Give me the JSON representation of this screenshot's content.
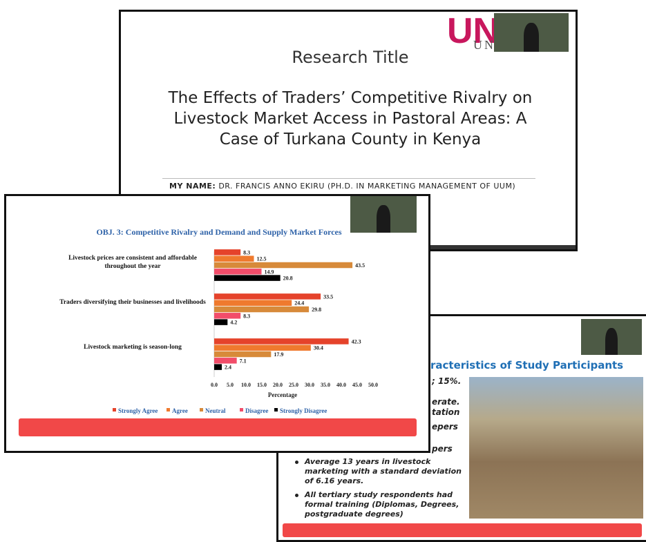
{
  "slides": [
    {
      "logo": "UN",
      "logo_sub": "UN",
      "heading": "Research Title",
      "title": "The Effects of Traders’ Competitive Rivalry on Livestock Market Access in Pastoral Areas: A Case of Turkana County in Kenya",
      "name_label": "MY NAME:",
      "name": "DR. FRANCIS ANNO EKIRU (PH.D. IN MARKETING MANAGEMENT OF UUM)"
    },
    {
      "chart": {
        "type": "bar",
        "orientation": "horizontal",
        "title": "OBJ. 3: Competitive Rivalry and Demand and Supply Market Forces",
        "categories": [
          "Livestock prices are consistent and affordable throughout the year",
          "Traders diversifying their businesses and livelihoods",
          "Livestock marketing is season-long"
        ],
        "series": [
          {
            "name": "Strongly Agree",
            "color": "#e5432b",
            "values": [
              8.3,
              33.5,
              42.3
            ]
          },
          {
            "name": "Agree",
            "color": "#ef7a2e",
            "values": [
              12.5,
              24.4,
              30.4
            ]
          },
          {
            "name": "Neutral",
            "color": "#d78a3a",
            "values": [
              43.5,
              29.8,
              17.9
            ]
          },
          {
            "name": "Disagree",
            "color": "#f24d6a",
            "values": [
              14.9,
              8.3,
              7.1
            ]
          },
          {
            "name": "Strongly Disagree",
            "color": "#000000",
            "values": [
              20.8,
              4.2,
              2.4
            ]
          }
        ],
        "xlabel": "Percentage",
        "xlim": [
          0,
          50
        ],
        "xticks": [
          {
            "value": 0,
            "label": "0.0"
          },
          {
            "value": 5,
            "label": "5.0"
          },
          {
            "value": 10,
            "label": "10.0"
          },
          {
            "value": 15,
            "label": "15.0"
          },
          {
            "value": 20,
            "label": "20.0"
          },
          {
            "value": 25,
            "label": "25.0"
          },
          {
            "value": 30,
            "label": "30.0"
          },
          {
            "value": 35,
            "label": "35.0"
          },
          {
            "value": 40,
            "label": "40.0"
          },
          {
            "value": 45,
            "label": "45.0"
          },
          {
            "value": 50,
            "label": "50.0"
          }
        ],
        "legend": "bottom"
      }
    },
    {
      "title": "racteristics of Study Participants",
      "fragments": [
        "; 15%.",
        "erate.",
        "tation",
        "epers",
        "pers"
      ],
      "bullets": [
        "Average 13 years in livestock marketing with a standard deviation of 6.16 years.",
        "All tertiary study respondents had formal training (Diplomas, Degrees, postgraduate degrees)"
      ]
    }
  ]
}
